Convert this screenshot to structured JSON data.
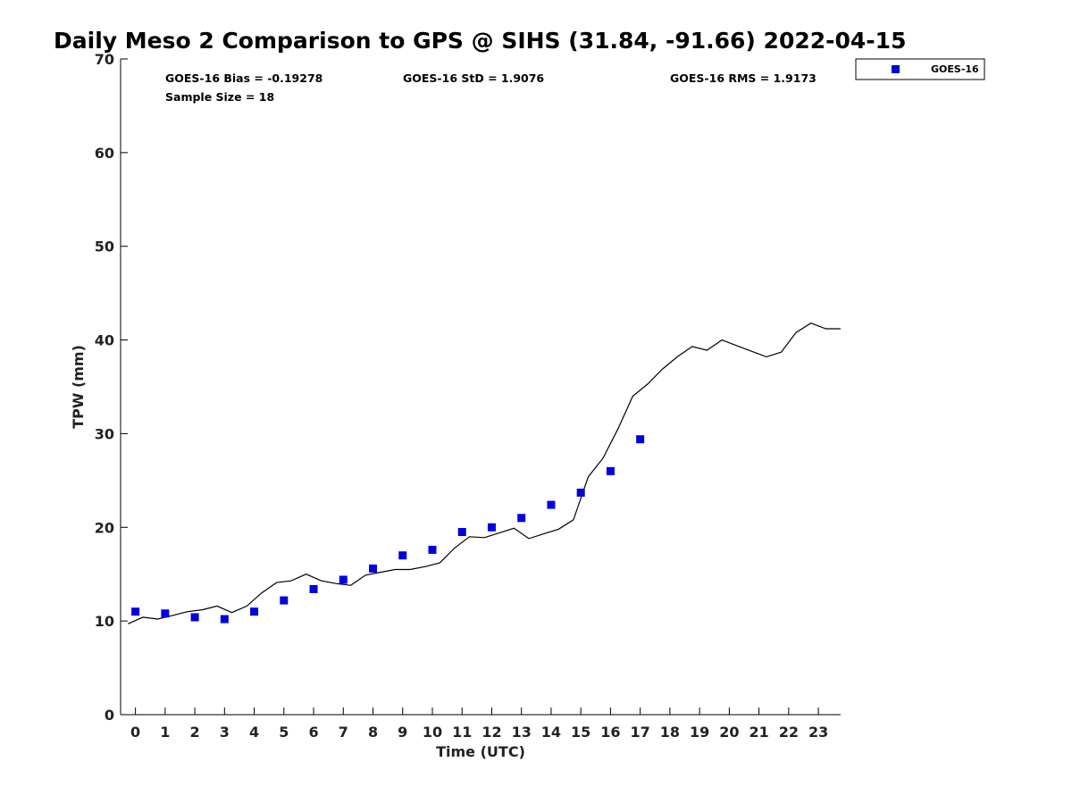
{
  "chart_data": {
    "type": "scatter",
    "title": "Daily Meso 2 Comparison to GPS @ SIHS (31.84, -91.66) 2022-04-15",
    "xlabel": "Time (UTC)",
    "ylabel": "TPW (mm)",
    "xlim": [
      -0.5,
      23.75
    ],
    "ylim": [
      0,
      70
    ],
    "x_ticks": [
      "0",
      "1",
      "2",
      "3",
      "4",
      "5",
      "6",
      "7",
      "8",
      "9",
      "10",
      "11",
      "12",
      "13",
      "14",
      "15",
      "16",
      "17",
      "18",
      "19",
      "20",
      "21",
      "22",
      "23"
    ],
    "y_ticks": [
      "0",
      "10",
      "20",
      "30",
      "40",
      "50",
      "60",
      "70"
    ],
    "grid": false,
    "legend": {
      "position": "top-right",
      "entries": [
        "GOES-16"
      ]
    },
    "stats": {
      "bias": "GOES-16 Bias = -0.19278",
      "std": "GOES-16 StD = 1.9076",
      "rms": "GOES-16 RMS = 1.9173",
      "sample": "Sample Size = 18"
    },
    "series": [
      {
        "name": "GOES-16",
        "kind": "scatter",
        "color": "#0000dd",
        "x": [
          0,
          1,
          2,
          3,
          4,
          5,
          6,
          7,
          8,
          9,
          10,
          11,
          12,
          13,
          14,
          15,
          16,
          17
        ],
        "y": [
          11.0,
          10.8,
          10.4,
          10.2,
          11.0,
          12.2,
          13.4,
          14.4,
          15.6,
          17.0,
          17.6,
          19.5,
          20.0,
          21.0,
          22.4,
          23.7,
          26.0,
          29.4
        ]
      },
      {
        "name": "",
        "kind": "line",
        "color": "#000000",
        "x": [
          -0.25,
          0.25,
          0.75,
          1.25,
          1.75,
          2.25,
          2.75,
          3.25,
          3.75,
          4.25,
          4.75,
          5.25,
          5.75,
          6.25,
          6.75,
          7.25,
          7.75,
          8.25,
          8.75,
          9.25,
          9.75,
          10.25,
          10.75,
          11.25,
          11.75,
          12.25,
          12.75,
          13.25,
          13.75,
          14.25,
          14.75,
          15.25,
          15.75,
          16.25,
          16.75,
          17.25,
          17.75,
          18.25,
          18.75,
          19.25,
          19.75,
          20.25,
          20.75,
          21.25,
          21.75,
          22.25,
          22.75,
          23.25,
          23.75
        ],
        "y": [
          9.7,
          10.4,
          10.2,
          10.6,
          11.0,
          11.2,
          11.6,
          10.9,
          11.6,
          13.0,
          14.1,
          14.3,
          15.0,
          14.3,
          14.0,
          13.8,
          14.9,
          15.2,
          15.5,
          15.5,
          15.8,
          16.2,
          17.8,
          19.0,
          18.9,
          19.4,
          19.9,
          18.8,
          19.3,
          19.8,
          20.8,
          25.4,
          27.4,
          30.5,
          34.0,
          35.3,
          36.9,
          38.2,
          39.3,
          38.9,
          40.0,
          39.4,
          38.8,
          38.2,
          38.7,
          40.8,
          41.8,
          41.2,
          41.2
        ]
      }
    ]
  }
}
